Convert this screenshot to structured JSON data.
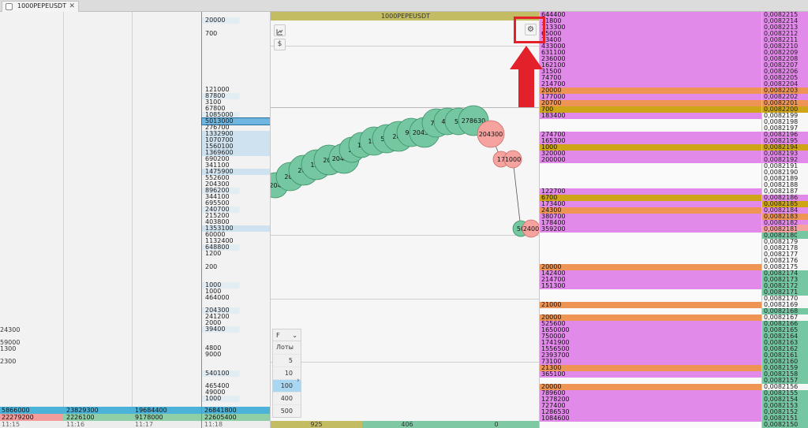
{
  "tab": {
    "title": "1000PEPEUSDT",
    "close": "✕"
  },
  "chart": {
    "title": "1000PEPEUSDT",
    "tool_icons": [
      "trend-icon",
      "dollar-icon"
    ],
    "dollar": "$",
    "settings_icon": "⚙",
    "bubbles": [
      {
        "label": "204",
        "color": "green"
      },
      {
        "label": "200",
        "color": "green"
      },
      {
        "label": "200",
        "color": "green"
      },
      {
        "label": "122",
        "color": "green"
      },
      {
        "label": "200",
        "color": "green"
      },
      {
        "label": "204300",
        "color": "green"
      },
      {
        "label": "10",
        "color": "green"
      },
      {
        "label": "19",
        "color": "green"
      },
      {
        "label": "122",
        "color": "green"
      },
      {
        "label": "524",
        "color": "green"
      },
      {
        "label": "204",
        "color": "green"
      },
      {
        "label": "900",
        "color": "green"
      },
      {
        "label": "204300",
        "color": "green"
      },
      {
        "label": "708",
        "color": "green"
      },
      {
        "label": "485",
        "color": "green"
      },
      {
        "label": "55",
        "color": "green"
      },
      {
        "label": "278630",
        "color": "green"
      },
      {
        "label": "204300",
        "color": "red"
      },
      {
        "label": "17",
        "color": "red"
      },
      {
        "label": "1000",
        "color": "red"
      },
      {
        "label": "50",
        "color": "green"
      },
      {
        "label": "2400",
        "color": "red"
      }
    ],
    "footer": [
      "925",
      "406",
      "0"
    ],
    "lot_panel": {
      "mode": "F",
      "chevron": "⌄",
      "label": "Лоты",
      "options": [
        "5",
        "10",
        "100",
        "400",
        "500"
      ],
      "selected": "100",
      "expand": "›"
    }
  },
  "colors": {
    "bid": "#e28ae9",
    "ask_orange": "#ee9555",
    "ask_gold": "#cea517",
    "green": "#74c7a0",
    "red": "#f6a29f",
    "accent_red": "#e3212b"
  },
  "ladder": [
    "20000",
    "700",
    "121000",
    "87800",
    "3100",
    "67800",
    "1085000",
    "5013000",
    "276700",
    "1332900",
    "1070700",
    "1560100",
    "1369600",
    "690200",
    "341100",
    "1475900",
    "552600",
    "204300",
    "896200",
    "344100",
    "695500",
    "240700",
    "215200",
    "403800",
    "1353100",
    "60000",
    "1132400",
    "648800",
    "1200",
    "200",
    "1000",
    "1000",
    "464000",
    "204300",
    "241200",
    "2000",
    "39400",
    "4800",
    "9000",
    "540100",
    "465400",
    "49000",
    "1000"
  ],
  "left_cols": {
    "col1": [
      "24300",
      "59000",
      "1300",
      "2300"
    ],
    "bottom_blue": [
      "5866000",
      "23829300",
      "19684400",
      "26841800"
    ],
    "bottom_red": [
      "22279200",
      "2226100",
      "9178000",
      "22605400"
    ],
    "times": [
      "11:15",
      "11:16",
      "11:17",
      "11:18"
    ]
  },
  "book": [
    {
      "v": "644400",
      "c": "bid"
    },
    {
      "v": "11800",
      "c": "bid"
    },
    {
      "v": "713300",
      "c": "bid"
    },
    {
      "v": "65000",
      "c": "bid"
    },
    {
      "v": "13400",
      "c": "bid"
    },
    {
      "v": "433000",
      "c": "bid"
    },
    {
      "v": "631100",
      "c": "bid"
    },
    {
      "v": "236000",
      "c": "bid"
    },
    {
      "v": "162100",
      "c": "bid"
    },
    {
      "v": "31500",
      "c": "bid"
    },
    {
      "v": "74700",
      "c": "bid"
    },
    {
      "v": "214700",
      "c": "bid"
    },
    {
      "v": "20000",
      "c": "ask_orange"
    },
    {
      "v": "177000",
      "c": "bid"
    },
    {
      "v": "20700",
      "c": "ask_orange"
    },
    {
      "v": "700",
      "c": "ask_gold"
    },
    {
      "v": "183400",
      "c": "bid"
    },
    {
      "v": "",
      "c": "none"
    },
    {
      "v": "",
      "c": "none"
    },
    {
      "v": "274700",
      "c": "bid"
    },
    {
      "v": "165300",
      "c": "bid"
    },
    {
      "v": "1000",
      "c": "ask_gold"
    },
    {
      "v": "320000",
      "c": "bid"
    },
    {
      "v": "200000",
      "c": "bid"
    },
    {
      "v": "",
      "c": "none"
    },
    {
      "v": "",
      "c": "none"
    },
    {
      "v": "",
      "c": "none"
    },
    {
      "v": "",
      "c": "none"
    },
    {
      "v": "122700",
      "c": "bid"
    },
    {
      "v": "6700",
      "c": "ask_gold"
    },
    {
      "v": "173400",
      "c": "bid"
    },
    {
      "v": "24300",
      "c": "ask_orange"
    },
    {
      "v": "380700",
      "c": "bid"
    },
    {
      "v": "178400",
      "c": "bid"
    },
    {
      "v": "359200",
      "c": "bid"
    },
    {
      "v": "",
      "c": "none"
    },
    {
      "v": "",
      "c": "none"
    },
    {
      "v": "",
      "c": "none"
    },
    {
      "v": "",
      "c": "none"
    },
    {
      "v": "",
      "c": "none"
    },
    {
      "v": "20000",
      "c": "ask_orange"
    },
    {
      "v": "142400",
      "c": "bid"
    },
    {
      "v": "214700",
      "c": "bid"
    },
    {
      "v": "151300",
      "c": "bid"
    },
    {
      "v": "",
      "c": "none"
    },
    {
      "v": "",
      "c": "none"
    },
    {
      "v": "21000",
      "c": "ask_orange"
    },
    {
      "v": "",
      "c": "none"
    },
    {
      "v": "20000",
      "c": "ask_orange"
    },
    {
      "v": "525600",
      "c": "bid"
    },
    {
      "v": "1650000",
      "c": "bid"
    },
    {
      "v": "750000",
      "c": "bid"
    },
    {
      "v": "1741900",
      "c": "bid"
    },
    {
      "v": "1556500",
      "c": "bid"
    },
    {
      "v": "2393700",
      "c": "bid"
    },
    {
      "v": "73100",
      "c": "bid"
    },
    {
      "v": "21300",
      "c": "ask_orange"
    },
    {
      "v": "365100",
      "c": "bid"
    },
    {
      "v": "",
      "c": "none"
    },
    {
      "v": "20000",
      "c": "ask_orange"
    },
    {
      "v": "789600",
      "c": "bid"
    },
    {
      "v": "1278200",
      "c": "bid"
    },
    {
      "v": "727400",
      "c": "bid"
    },
    {
      "v": "1286530",
      "c": "bid"
    },
    {
      "v": "1084600",
      "c": "bid"
    }
  ],
  "prices": [
    {
      "v": "0,0082215",
      "c": "bid"
    },
    {
      "v": "0,0082214",
      "c": "bid"
    },
    {
      "v": "0,0082213",
      "c": "bid"
    },
    {
      "v": "0,0082212",
      "c": "bid"
    },
    {
      "v": "0,0082211",
      "c": "bid"
    },
    {
      "v": "0,0082210",
      "c": "bid"
    },
    {
      "v": "0,0082209",
      "c": "bid"
    },
    {
      "v": "0,0082208",
      "c": "bid"
    },
    {
      "v": "0,0082207",
      "c": "bid"
    },
    {
      "v": "0,0082206",
      "c": "bid"
    },
    {
      "v": "0,0082205",
      "c": "bid"
    },
    {
      "v": "0,0082204",
      "c": "bid"
    },
    {
      "v": "0,0082203",
      "c": "ask_orange"
    },
    {
      "v": "0,0082202",
      "c": "bid"
    },
    {
      "v": "0,0082201",
      "c": "ask_orange"
    },
    {
      "v": "0,0082200",
      "c": "ask_gold"
    },
    {
      "v": "0,0082199",
      "c": "none"
    },
    {
      "v": "0,0082198",
      "c": "none"
    },
    {
      "v": "0,0082197",
      "c": "none"
    },
    {
      "v": "0,0082196",
      "c": "bid"
    },
    {
      "v": "0,0082195",
      "c": "bid"
    },
    {
      "v": "0,0082194",
      "c": "ask_gold"
    },
    {
      "v": "0,0082193",
      "c": "bid"
    },
    {
      "v": "0,0082192",
      "c": "bid"
    },
    {
      "v": "0,0082191",
      "c": "none"
    },
    {
      "v": "0,0082190",
      "c": "none"
    },
    {
      "v": "0,0082189",
      "c": "none"
    },
    {
      "v": "0,0082188",
      "c": "none"
    },
    {
      "v": "0,0082187",
      "c": "none"
    },
    {
      "v": "0,0082186",
      "c": "bid"
    },
    {
      "v": "0,0082185",
      "c": "ask_gold"
    },
    {
      "v": "0,0082184",
      "c": "bid"
    },
    {
      "v": "0,0082183",
      "c": "ask_orange"
    },
    {
      "v": "0,0082182",
      "c": "bid"
    },
    {
      "v": "0,0082181",
      "c": "red"
    },
    {
      "v": "0,0082180",
      "c": "green"
    },
    {
      "v": "0,0082179",
      "c": "none"
    },
    {
      "v": "0,0082178",
      "c": "none"
    },
    {
      "v": "0,0082177",
      "c": "none"
    },
    {
      "v": "0,0082176",
      "c": "none"
    },
    {
      "v": "0,0082175",
      "c": "none"
    },
    {
      "v": "0,0082174",
      "c": "green"
    },
    {
      "v": "0,0082173",
      "c": "green"
    },
    {
      "v": "0,0082172",
      "c": "green"
    },
    {
      "v": "0,0082171",
      "c": "green"
    },
    {
      "v": "0,0082170",
      "c": "none"
    },
    {
      "v": "0,0082169",
      "c": "none"
    },
    {
      "v": "0,0082168",
      "c": "green"
    },
    {
      "v": "0,0082167",
      "c": "none"
    },
    {
      "v": "0,0082166",
      "c": "green"
    },
    {
      "v": "0,0082165",
      "c": "green"
    },
    {
      "v": "0,0082164",
      "c": "green"
    },
    {
      "v": "0,0082163",
      "c": "green"
    },
    {
      "v": "0,0082162",
      "c": "green"
    },
    {
      "v": "0,0082161",
      "c": "green"
    },
    {
      "v": "0,0082160",
      "c": "green"
    },
    {
      "v": "0,0082159",
      "c": "green"
    },
    {
      "v": "0,0082158",
      "c": "green"
    },
    {
      "v": "0,0082157",
      "c": "green"
    },
    {
      "v": "0,0082156",
      "c": "none"
    },
    {
      "v": "0,0082155",
      "c": "green"
    },
    {
      "v": "0,0082154",
      "c": "green"
    },
    {
      "v": "0,0082153",
      "c": "green"
    },
    {
      "v": "0,0082152",
      "c": "green"
    },
    {
      "v": "0,0082151",
      "c": "green"
    },
    {
      "v": "0,0082150",
      "c": "green"
    }
  ]
}
